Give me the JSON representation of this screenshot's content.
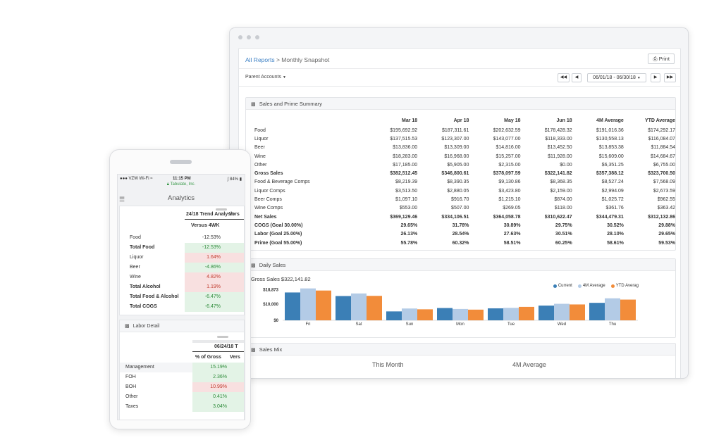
{
  "desktop": {
    "breadcrumb": {
      "link": "All Reports",
      "separator": ">",
      "current": "Monthly Snapshot"
    },
    "print_label": "Print",
    "parent_accounts": "Parent Accounts",
    "date_range": "06/01/18 - 06/30/18",
    "summary": {
      "title": "Sales and Prime Summary",
      "columns": [
        "Mar 18",
        "Apr 18",
        "May 18",
        "Jun 18",
        "4M Average",
        "YTD Average"
      ],
      "rows": [
        {
          "label": "Food",
          "bold": false,
          "values": [
            "$195,692.92",
            "$187,311.61",
            "$202,632.59",
            "$178,428.32",
            "$191,016.36",
            "$174,292.17"
          ]
        },
        {
          "label": "Liquor",
          "bold": false,
          "values": [
            "$137,515.53",
            "$123,307.00",
            "$143,077.00",
            "$118,333.00",
            "$130,558.13",
            "$116,084.07"
          ]
        },
        {
          "label": "Beer",
          "bold": false,
          "values": [
            "$13,836.00",
            "$13,309.00",
            "$14,816.00",
            "$13,452.50",
            "$13,853.38",
            "$11,884.54"
          ]
        },
        {
          "label": "Wine",
          "bold": false,
          "values": [
            "$18,283.00",
            "$16,968.00",
            "$15,257.00",
            "$11,928.00",
            "$15,609.00",
            "$14,684.67"
          ]
        },
        {
          "label": "Other",
          "bold": false,
          "values": [
            "$17,185.00",
            "$5,905.00",
            "$2,315.00",
            "$0.00",
            "$6,351.25",
            "$6,755.00"
          ]
        },
        {
          "label": "Gross Sales",
          "bold": true,
          "values": [
            "$382,512.45",
            "$346,800.61",
            "$378,097.59",
            "$322,141.82",
            "$357,388.12",
            "$323,700.50"
          ]
        },
        {
          "label": "Food & Beverage Comps",
          "bold": false,
          "values": [
            "$8,219.39",
            "$8,390.35",
            "$9,130.86",
            "$8,368.35",
            "$8,527.24",
            "$7,568.09"
          ]
        },
        {
          "label": "Liquor Comps",
          "bold": false,
          "values": [
            "$3,513.50",
            "$2,880.05",
            "$3,423.80",
            "$2,159.00",
            "$2,994.09",
            "$2,673.59"
          ]
        },
        {
          "label": "Beer Comps",
          "bold": false,
          "values": [
            "$1,097.10",
            "$916.70",
            "$1,215.10",
            "$874.00",
            "$1,025.72",
            "$962.55"
          ]
        },
        {
          "label": "Wine Comps",
          "bold": false,
          "values": [
            "$553.00",
            "$507.00",
            "$269.05",
            "$118.00",
            "$361.76",
            "$363.42"
          ]
        },
        {
          "label": "Net Sales",
          "bold": true,
          "values": [
            "$369,129.46",
            "$334,106.51",
            "$364,058.78",
            "$310,622.47",
            "$344,479.31",
            "$312,132.86"
          ]
        },
        {
          "label": "COGS (Goal 30.00%)",
          "bold": true,
          "values": [
            "29.65%",
            "31.78%",
            "30.89%",
            "29.75%",
            "30.52%",
            "29.88%"
          ]
        },
        {
          "label": "Labor (Goal 25.00%)",
          "bold": true,
          "values": [
            "26.13%",
            "28.54%",
            "27.63%",
            "30.51%",
            "28.10%",
            "29.65%"
          ]
        },
        {
          "label": "Prime (Goal 55.00%)",
          "bold": true,
          "values": [
            "55.78%",
            "60.32%",
            "58.51%",
            "60.25%",
            "58.61%",
            "59.53%"
          ]
        }
      ]
    },
    "daily_sales": {
      "title": "Daily Sales",
      "gross_label": "Gross Sales $322,141.82"
    },
    "sales_mix": {
      "title": "Sales Mix",
      "this_month": "This Month",
      "four_month": "4M Average"
    }
  },
  "chart_data": {
    "type": "bar",
    "categories": [
      "Fri",
      "Sat",
      "Sun",
      "Mon",
      "Tue",
      "Wed",
      "Thu"
    ],
    "series": [
      {
        "name": "Current",
        "color": "#3b7fb6",
        "values": [
          17200,
          15000,
          5500,
          7600,
          7400,
          9100,
          10800
        ]
      },
      {
        "name": "4M Average",
        "color": "#b3cbe6",
        "values": [
          19700,
          16600,
          7300,
          7000,
          7700,
          10200,
          13600
        ]
      },
      {
        "name": "YTD Averag",
        "color": "#f28c3a",
        "values": [
          18400,
          15100,
          6800,
          6600,
          8300,
          9800,
          12800
        ]
      }
    ],
    "yticks": [
      "$18,873",
      "$10,000",
      "$0"
    ],
    "ylim": [
      0,
      20000
    ],
    "legend_position": "top-right"
  },
  "phone": {
    "status": {
      "carrier": "VZW Wi-Fi",
      "time": "11:15 PM",
      "battery": "84%"
    },
    "company": "Tabulate, Inc.",
    "title": "Analytics",
    "cogs": {
      "header_title": "24/18 Trend Analysis",
      "header_cut": "Vers",
      "col_label": "Versus 4WK",
      "rows": [
        {
          "label": "Food",
          "bold": false,
          "value": "-12.53%",
          "tone": "plain"
        },
        {
          "label": "Total Food",
          "bold": true,
          "value": "-12.53%",
          "tone": "green"
        },
        {
          "label": "Liquor",
          "bold": false,
          "value": "1.64%",
          "tone": "red"
        },
        {
          "label": "Beer",
          "bold": false,
          "value": "-4.86%",
          "tone": "green"
        },
        {
          "label": "Wine",
          "bold": false,
          "value": "4.82%",
          "tone": "red"
        },
        {
          "label": "Total Alcohol",
          "bold": true,
          "value": "1.19%",
          "tone": "red"
        },
        {
          "label": "Total Food & Alcohol",
          "bold": true,
          "value": "-6.47%",
          "tone": "green"
        },
        {
          "label": "Total COGS",
          "bold": true,
          "value": "-6.47%",
          "tone": "green"
        }
      ]
    },
    "labor": {
      "title": "Labor Detail",
      "header_date": "06/24/18 T",
      "col_label": "% of Gross",
      "col_cut": "Vers",
      "rows": [
        {
          "label": "Management",
          "value": "15.19%",
          "tone": "green"
        },
        {
          "label": "FOH",
          "value": "2.36%",
          "tone": "green"
        },
        {
          "label": "BOH",
          "value": "10.99%",
          "tone": "red"
        },
        {
          "label": "Other",
          "value": "0.41%",
          "tone": "green"
        },
        {
          "label": "Taxes",
          "value": "3.04%",
          "tone": "green"
        }
      ]
    }
  }
}
